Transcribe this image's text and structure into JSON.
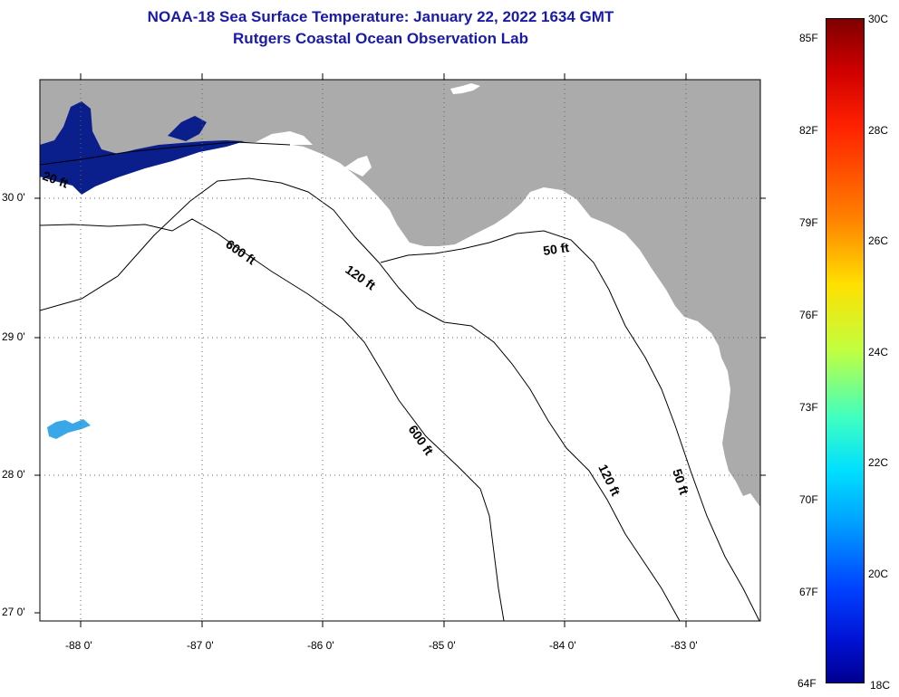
{
  "header": {
    "title": "NOAA-18 Sea Surface Temperature:  January 22, 2022 1634 GMT",
    "subtitle": "Rutgers Coastal Ocean Observation Lab"
  },
  "map": {
    "region": "Florida Panhandle / Northeastern Gulf of Mexico",
    "longitude_labels": [
      "-88 0'",
      "-87 0'",
      "-86 0'",
      "-85 0'",
      "-84 0'",
      "-83 0'"
    ],
    "latitude_labels": [
      "30 0'",
      "29 0'",
      "28 0'",
      "27 0'"
    ],
    "contour_labels": {
      "shelf_120_nw": "120 ft",
      "slope_600_upper": "600 ft",
      "slope_600_lower": "600 ft",
      "shelf_120_se": "120 ft",
      "coast_50_upper": "50 ft",
      "coast_50_lower": "50 ft",
      "cut_20": "20 ft"
    },
    "colors": {
      "land": "#ababab",
      "water": "#ffffff",
      "cold_water": "#0a1e8c",
      "warm_patch": "#3aa8e8",
      "contour": "#000000",
      "title": "#1a1aa8"
    }
  },
  "colorbar": {
    "fahrenheit": [
      "85F",
      "82F",
      "79F",
      "76F",
      "73F",
      "70F",
      "67F",
      "64F"
    ],
    "celsius": [
      "30C",
      "28C",
      "26C",
      "24C",
      "22C",
      "20C",
      "18C"
    ]
  }
}
